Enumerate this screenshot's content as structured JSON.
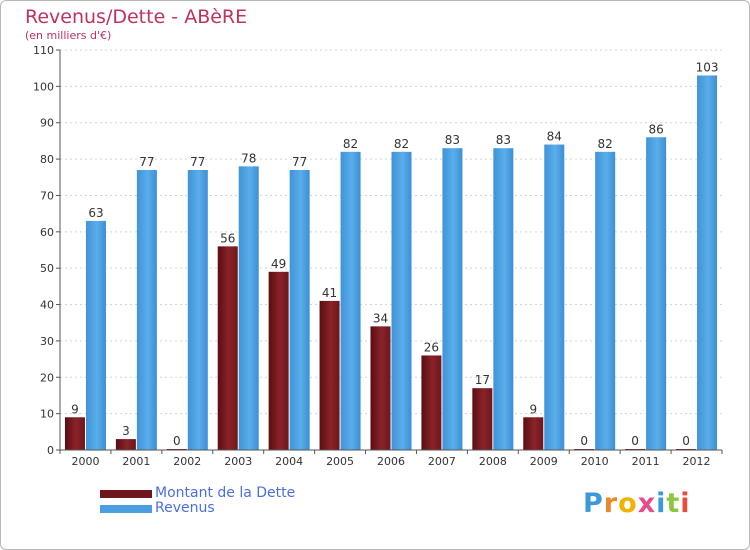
{
  "title": "Revenus/Dette - ABèRE",
  "subtitle": "(en milliers d'€)",
  "logo": {
    "letters": [
      "P",
      "r",
      "o",
      "x",
      "i",
      "t",
      "i"
    ],
    "colors": [
      "#3a9ad9",
      "#e8892b",
      "#f0b400",
      "#e84c8a",
      "#3a9ad9",
      "#8dc63f",
      "#e84c3a"
    ]
  },
  "chart_data": {
    "type": "bar",
    "title": "Revenus/Dette - ABèRE",
    "subtitle": "(en milliers d'€)",
    "categories": [
      "2000",
      "2001",
      "2002",
      "2003",
      "2004",
      "2005",
      "2006",
      "2007",
      "2008",
      "2009",
      "2010",
      "2011",
      "2012"
    ],
    "series": [
      {
        "name": "Montant de la Dette",
        "values": [
          9,
          3,
          0,
          56,
          49,
          41,
          34,
          26,
          17,
          9,
          0,
          0,
          0
        ],
        "color": "#7a1a1f"
      },
      {
        "name": "Revenus",
        "values": [
          63,
          77,
          77,
          78,
          77,
          82,
          82,
          83,
          83,
          84,
          82,
          86,
          103
        ],
        "color": "#4a9fe3"
      }
    ],
    "yticks": [
      0,
      10,
      20,
      30,
      40,
      50,
      60,
      70,
      80,
      90,
      100,
      110
    ],
    "ylim": [
      0,
      110
    ],
    "grid": true,
    "legend_position": "bottom-left"
  }
}
